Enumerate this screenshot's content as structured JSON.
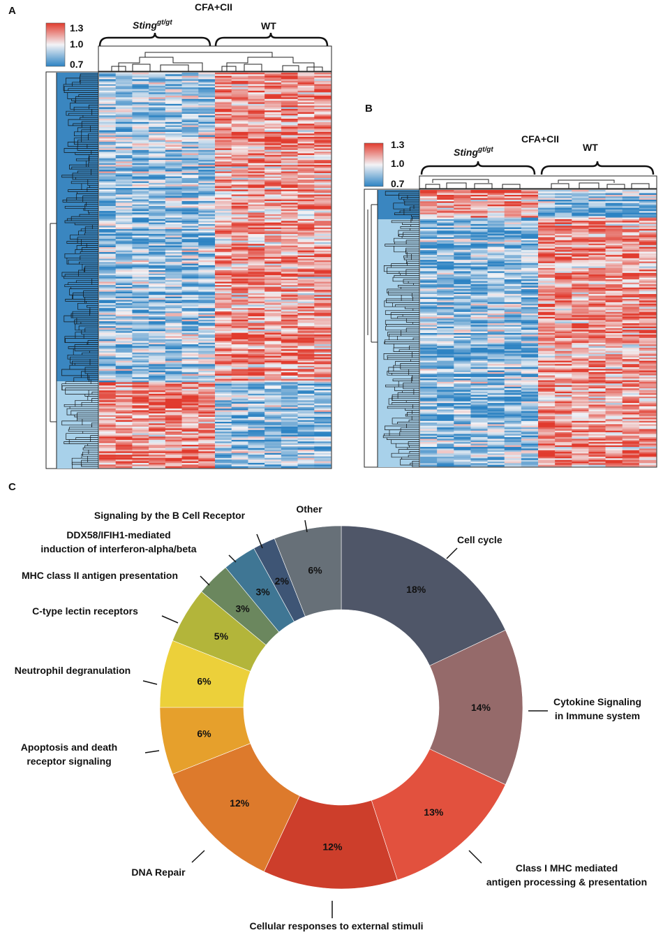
{
  "panels": {
    "A": {
      "letter": "A",
      "treatment": "CFA+CII",
      "group_left": "Sting",
      "group_left_sup": "gt/gt",
      "group_right": "WT",
      "scale": {
        "max": "1.3",
        "mid": "1.0",
        "min": "0.7"
      }
    },
    "B": {
      "letter": "B",
      "treatment": "CFA+CII",
      "group_left": "Sting",
      "group_left_sup": "gt/gt",
      "group_right": "WT",
      "scale": {
        "max": "1.3",
        "mid": "1.0",
        "min": "0.7"
      }
    },
    "C": {
      "letter": "C"
    }
  },
  "colors": {
    "heat_low": "#2d83c3",
    "heat_mid": "#f3f3f6",
    "heat_high": "#e13b2e",
    "cluster_dark": "#3a86c0",
    "cluster_light": "#a8d1ea"
  },
  "chart_data": {
    "type": "pie",
    "subtype": "donut",
    "title": "",
    "slices": [
      {
        "label": "Cell cycle",
        "label_lines": [
          "Cell cycle"
        ],
        "value": 18,
        "display": "18%",
        "color": "#4f5668"
      },
      {
        "label": "Cytokine Signaling in Immune system",
        "label_lines": [
          "Cytokine Signaling",
          "in Immune system"
        ],
        "value": 14,
        "display": "14%",
        "color": "#956a6a"
      },
      {
        "label": "Class I MHC mediated antigen processing & presentation",
        "label_lines": [
          "Class I MHC mediated",
          "antigen processing & presentation"
        ],
        "value": 13,
        "display": "13%",
        "color": "#e2513e"
      },
      {
        "label": "Cellular responses to external stimuli",
        "label_lines": [
          "Cellular responses to external stimuli"
        ],
        "value": 12,
        "display": "12%",
        "color": "#cd3e2b"
      },
      {
        "label": "DNA Repair",
        "label_lines": [
          "DNA Repair"
        ],
        "value": 12,
        "display": "12%",
        "color": "#dd7a2c"
      },
      {
        "label": "Apoptosis and death receptor signaling",
        "label_lines": [
          "Apoptosis and death",
          "receptor signaling"
        ],
        "value": 6,
        "display": "6%",
        "color": "#e6a02c"
      },
      {
        "label": "Neutrophil degranulation",
        "label_lines": [
          "Neutrophil degranulation"
        ],
        "value": 6,
        "display": "6%",
        "color": "#ecd03a"
      },
      {
        "label": "C-type lectin receptors",
        "label_lines": [
          "C-type lectin receptors"
        ],
        "value": 5,
        "display": "5%",
        "color": "#b3b53a"
      },
      {
        "label": "MHC class II antigen presentation",
        "label_lines": [
          "MHC class II antigen presentation"
        ],
        "value": 3,
        "display": "3%",
        "color": "#6b875e"
      },
      {
        "label": "DDX58/IFIH1-mediated induction of interferon-alpha/beta",
        "label_lines": [
          "DDX58/IFIH1-mediated",
          "induction of interferon-alpha/beta"
        ],
        "value": 3,
        "display": "3%",
        "color": "#3f7694"
      },
      {
        "label": "Signaling by the B Cell Receptor",
        "label_lines": [
          "Signaling by the B Cell Receptor"
        ],
        "value": 2,
        "display": "2%",
        "color": "#3e5575"
      },
      {
        "label": "Other",
        "label_lines": [
          "Other"
        ],
        "value": 6,
        "display": "6%",
        "color": "#677078"
      }
    ]
  }
}
